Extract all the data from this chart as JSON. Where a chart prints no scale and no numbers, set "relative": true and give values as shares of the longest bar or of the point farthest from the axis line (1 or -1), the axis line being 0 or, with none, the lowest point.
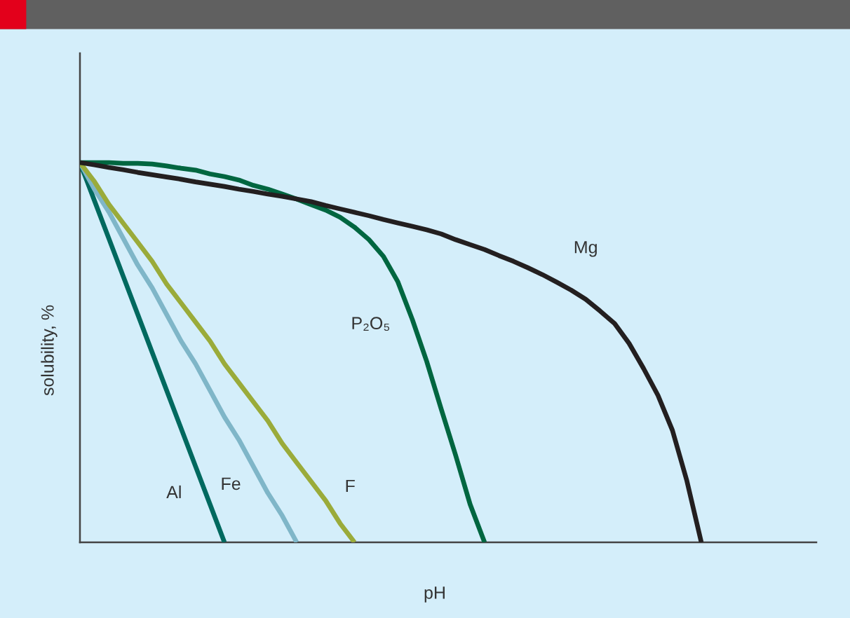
{
  "chart_data": {
    "type": "line",
    "relative": true,
    "xlabel": "pH",
    "ylabel": "solubility, %",
    "categories": [
      null,
      null,
      null,
      null,
      null,
      null,
      null,
      null,
      null,
      null,
      null,
      null,
      null,
      null,
      null,
      null,
      null,
      null,
      null,
      null,
      null,
      null,
      null,
      null,
      null,
      null,
      null,
      null,
      null,
      null,
      null,
      null,
      null,
      null,
      null,
      null,
      null,
      null,
      null,
      null,
      null,
      null,
      null,
      null
    ],
    "series": [
      {
        "name": "Al",
        "color": "#00695f",
        "values": [
          1,
          0.9,
          0.8,
          0.7,
          0.6,
          0.5,
          0.4,
          0.3,
          0.2,
          0.1,
          0,
          null,
          null,
          null,
          null,
          null,
          null,
          null,
          null,
          null,
          null,
          null,
          null,
          null,
          null,
          null,
          null,
          null,
          null,
          null,
          null,
          null,
          null,
          null,
          null,
          null,
          null,
          null,
          null,
          null,
          null,
          null,
          null,
          null
        ]
      },
      {
        "name": "Fe",
        "color": "#7fb6c8",
        "values": [
          1,
          0.93,
          0.87,
          0.8,
          0.73,
          0.67,
          0.6,
          0.53,
          0.47,
          0.4,
          0.33,
          0.27,
          0.2,
          0.13,
          0.07,
          0,
          null,
          null,
          null,
          null,
          null,
          null,
          null,
          null,
          null,
          null,
          null,
          null,
          null,
          null,
          null,
          null,
          null,
          null,
          null,
          null,
          null,
          null,
          null,
          null,
          null,
          null,
          null,
          null
        ]
      },
      {
        "name": "F",
        "color": "#9aab3a",
        "values": [
          1,
          0.95,
          0.89,
          0.84,
          0.79,
          0.74,
          0.68,
          0.63,
          0.58,
          0.53,
          0.47,
          0.42,
          0.37,
          0.32,
          0.26,
          0.21,
          0.16,
          0.11,
          0.05,
          0,
          null,
          null,
          null,
          null,
          null,
          null,
          null,
          null,
          null,
          null,
          null,
          null,
          null,
          null,
          null,
          null,
          null,
          null,
          null,
          null,
          null,
          null,
          null,
          null
        ]
      },
      {
        "name": "P₂O₅",
        "color": "#006640",
        "values": [
          1,
          1,
          1,
          0.998,
          0.998,
          0.996,
          0.991,
          0.985,
          0.98,
          0.97,
          0.963,
          0.954,
          0.94,
          0.93,
          0.917,
          0.904,
          0.889,
          0.875,
          0.856,
          0.83,
          0.797,
          0.753,
          0.686,
          0.587,
          0.476,
          0.351,
          0.229,
          0.1,
          0,
          null,
          null,
          null,
          null,
          null,
          null,
          null,
          null,
          null,
          null,
          null,
          null,
          null,
          null,
          null
        ]
      },
      {
        "name": "Mg",
        "color": "#231f20",
        "values": [
          1,
          0.994,
          0.987,
          0.981,
          0.974,
          0.968,
          0.962,
          0.956,
          0.949,
          0.943,
          0.937,
          0.93,
          0.924,
          0.917,
          0.911,
          0.904,
          0.897,
          0.887,
          0.878,
          0.869,
          0.86,
          0.85,
          0.841,
          0.832,
          0.823,
          0.812,
          0.797,
          0.784,
          0.771,
          0.755,
          0.74,
          0.723,
          0.705,
          0.685,
          0.664,
          0.64,
          0.609,
          0.576,
          0.524,
          0.458,
          0.387,
          0.295,
          0.162,
          0
        ]
      }
    ]
  }
}
